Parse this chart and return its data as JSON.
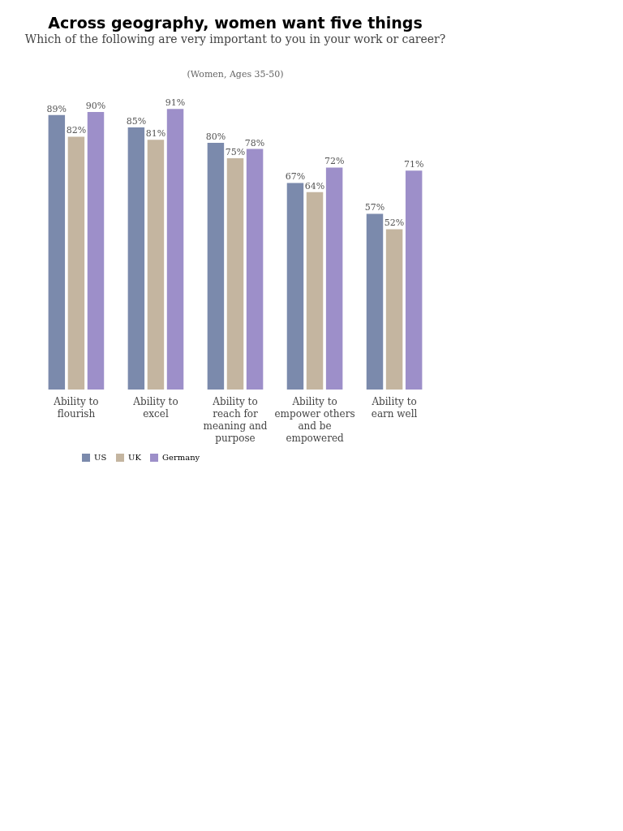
{
  "chart_data": {
    "type": "bar",
    "title": "Across geography, women want five things",
    "subtitle": "Which of the following are very important to you in your work or career?",
    "annotations": [
      "(Women, Ages 35-50)"
    ],
    "categories": [
      "Ability to flourish",
      "Ability to excel",
      "Ability to reach for meaning and purpose",
      "Ability to empower others and be empowered",
      "Ability to earn well"
    ],
    "series": [
      {
        "name": "US",
        "color": "#7b8aac",
        "values": [
          89,
          85,
          80,
          67,
          57
        ],
        "value_labels": [
          "89%",
          "85%",
          "80%",
          "67%",
          "57%"
        ]
      },
      {
        "name": "UK",
        "color": "#c4b5a0",
        "values": [
          82,
          81,
          75,
          64,
          52
        ],
        "value_labels": [
          "82%",
          "81%",
          "75%",
          "64%",
          "52%"
        ]
      },
      {
        "name": "Germany",
        "color": "#9d8fc9",
        "values": [
          90,
          91,
          78,
          72,
          71
        ],
        "value_labels": [
          "90%",
          "91%",
          "78%",
          "72%",
          "71%"
        ]
      }
    ],
    "legend": "bottom"
  }
}
